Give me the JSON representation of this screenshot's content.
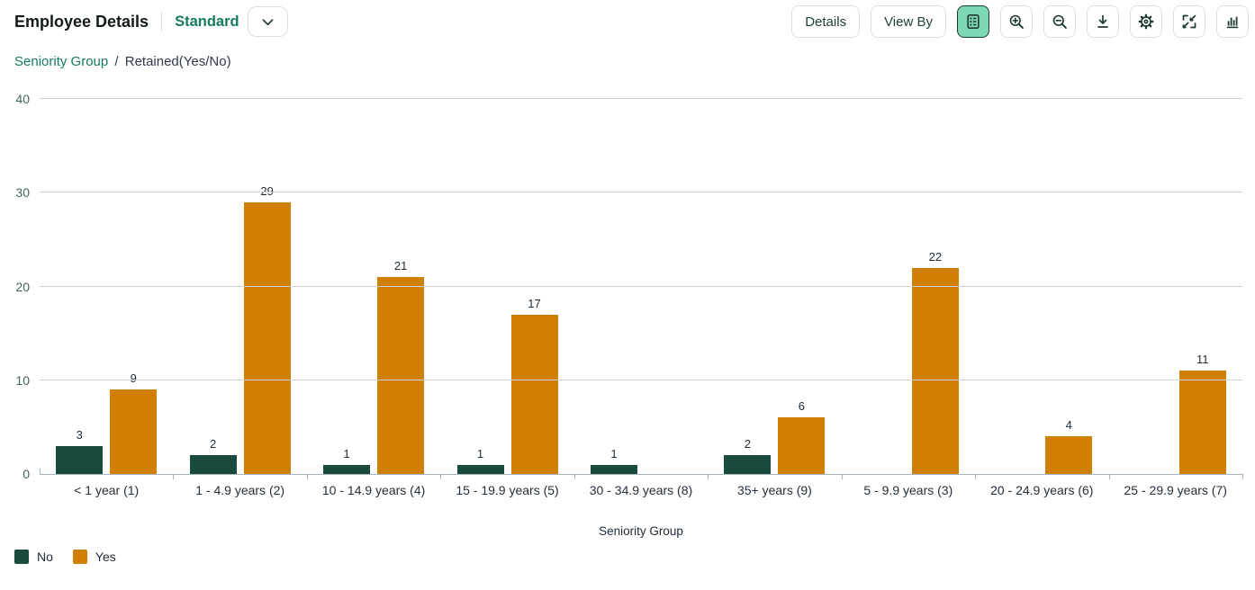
{
  "header": {
    "title": "Employee Details",
    "variant": "Standard"
  },
  "toolbar": {
    "details_label": "Details",
    "view_by_label": "View By",
    "icon_buttons": [
      {
        "name": "table-view-icon",
        "selected": true
      },
      {
        "name": "zoom-in-icon",
        "selected": false
      },
      {
        "name": "zoom-out-icon",
        "selected": false
      },
      {
        "name": "download-icon",
        "selected": false
      },
      {
        "name": "settings-gear-icon",
        "selected": false
      },
      {
        "name": "resize-icon",
        "selected": false
      },
      {
        "name": "column-chart-icon",
        "selected": false
      }
    ],
    "variant_selector_icon": "chevron-down-icon"
  },
  "breadcrumb": {
    "link": "Seniority Group",
    "separator": "/",
    "current": "Retained(Yes/No)"
  },
  "chart_data": {
    "type": "bar",
    "title": "",
    "categories": [
      "< 1 year (1)",
      "1 - 4.9 years (2)",
      "10 - 14.9 years (4)",
      "15 - 19.9 years (5)",
      "30 - 34.9 years (8)",
      "35+ years (9)",
      "5 - 9.9 years (3)",
      "20 - 24.9 years (6)",
      "25 - 29.9 years (7)"
    ],
    "series": [
      {
        "name": "No",
        "color": "#194a3d",
        "values": [
          3,
          2,
          1,
          1,
          1,
          2,
          null,
          null,
          null
        ]
      },
      {
        "name": "Yes",
        "color": "#d07f00",
        "values": [
          9,
          29,
          21,
          17,
          null,
          6,
          22,
          4,
          11
        ]
      }
    ],
    "xlabel": "Seniority Group",
    "ylabel": "",
    "ylim": [
      0,
      40
    ],
    "yticks": [
      0,
      10,
      20,
      30,
      40
    ],
    "grid": true,
    "legend_position": "bottom-left"
  },
  "colors": {
    "accent_teal": "#157a60",
    "selected_button_bg": "#7ed8b4",
    "selected_button_border": "#223a33",
    "button_border": "#d7dde1",
    "icon_color": "#22403a",
    "gridline": "#c9d3dc",
    "axis": "#a3b4bf"
  }
}
